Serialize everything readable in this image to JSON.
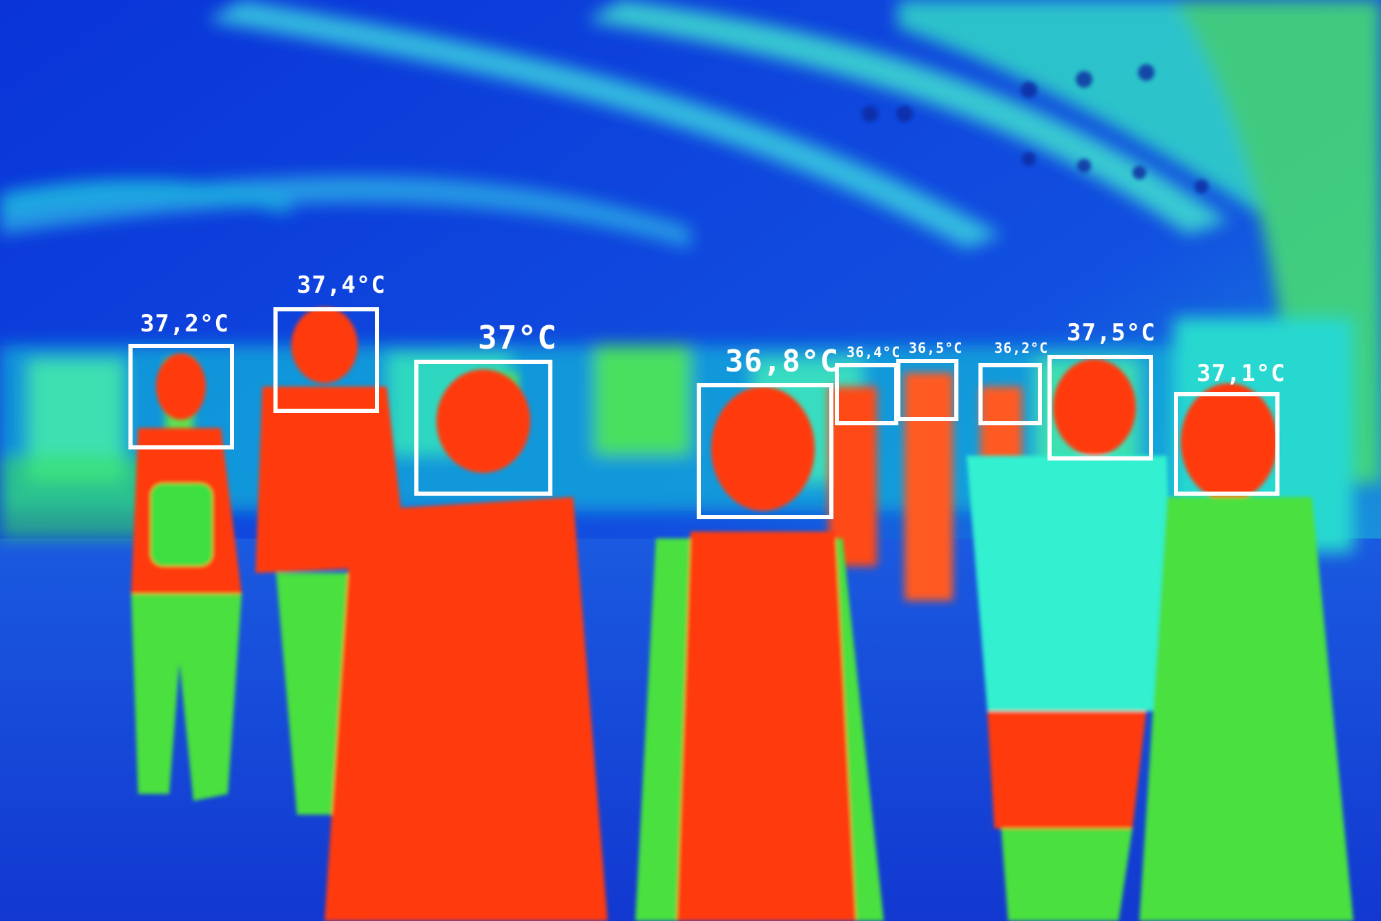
{
  "palette": {
    "cold": "#0a2fd0",
    "cool": "#1e6be6",
    "mid": "#18e0c8",
    "warm": "#3fe03a",
    "hot": "#ff3a10",
    "box": "#ffffff"
  },
  "detections": [
    {
      "label": "37,2°C",
      "temperature": 37.2
    },
    {
      "label": "37,4°C",
      "temperature": 37.4
    },
    {
      "label": "37°C",
      "temperature": 37.0
    },
    {
      "label": "36,8°C",
      "temperature": 36.8
    },
    {
      "label": "36,4°C",
      "temperature": 36.4
    },
    {
      "label": "36,5°C",
      "temperature": 36.5
    },
    {
      "label": "36,2°C",
      "temperature": 36.2
    },
    {
      "label": "37,5°C",
      "temperature": 37.5
    },
    {
      "label": "37,1°C",
      "temperature": 37.1
    }
  ]
}
